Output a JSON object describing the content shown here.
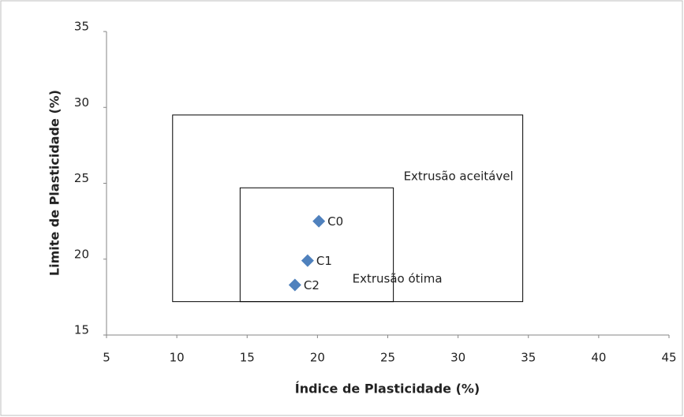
{
  "chart_data": {
    "type": "scatter",
    "x_label": "Índice de Plasticidade  (%)",
    "y_label": "Limite de Plasticidade (%)",
    "xlim": [
      5,
      45
    ],
    "xticks": [
      5,
      10,
      15,
      20,
      25,
      30,
      35,
      40,
      45
    ],
    "ylim": [
      15,
      35
    ],
    "yticks": [
      15,
      20,
      25,
      30,
      35
    ],
    "grid": false,
    "series": [
      {
        "name": "",
        "color": "#4f81bd",
        "labels": [
          "C0",
          "C1",
          "C2"
        ],
        "x": [
          20.1,
          19.3,
          18.4
        ],
        "values": [
          22.5,
          19.9,
          18.3
        ]
      }
    ],
    "regions": [
      {
        "label": "Extrusão aceitável",
        "x": [
          9.7,
          34.6
        ],
        "y": [
          17.2,
          29.5
        ]
      },
      {
        "label": "Extrusão ótima",
        "x": [
          14.5,
          25.4
        ],
        "y": [
          17.2,
          24.7
        ]
      }
    ]
  }
}
